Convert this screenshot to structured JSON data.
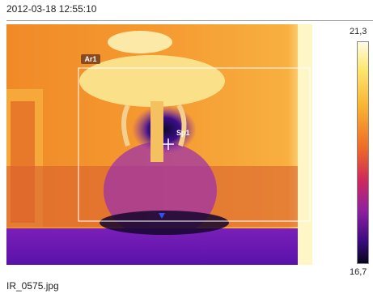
{
  "header": {
    "timestamp": "2012-03-18 12:55:10"
  },
  "image": {
    "area_label": "Ar1",
    "spot_label": "Sp1"
  },
  "scale": {
    "max_label": "21,3",
    "min_label": "16,7"
  },
  "footer": {
    "filename": "IR_0575.jpg"
  }
}
